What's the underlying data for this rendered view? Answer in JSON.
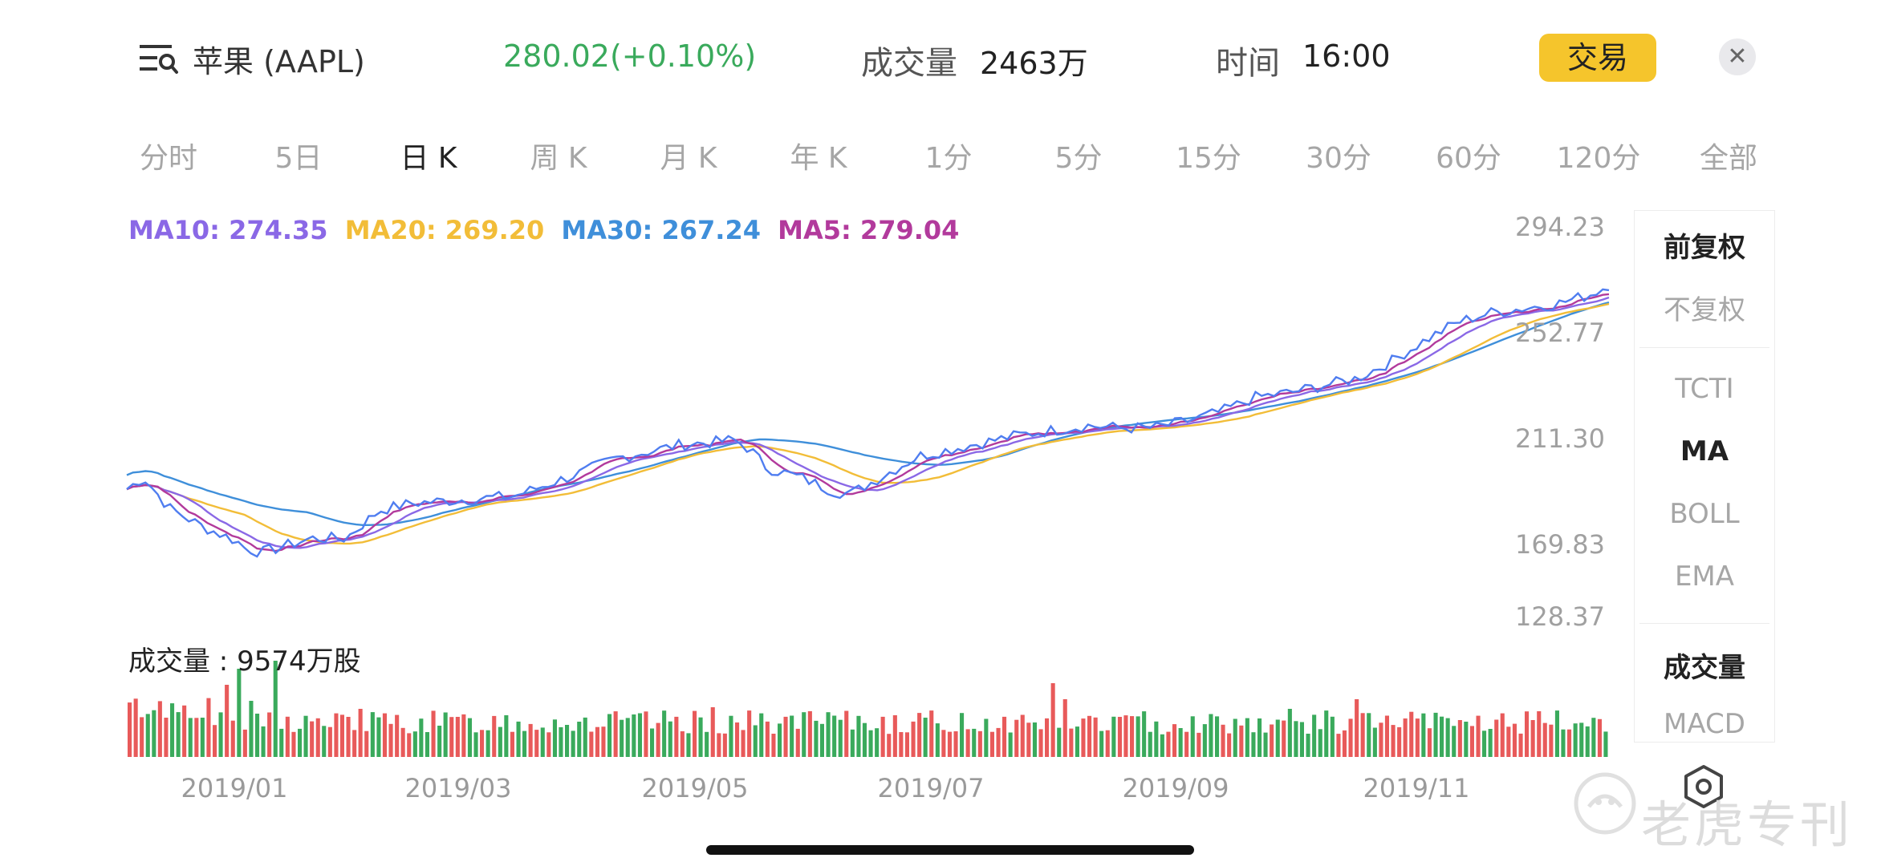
{
  "header": {
    "menu_icon": "search-list-icon",
    "stock_name": "苹果 (AAPL)",
    "price_change": "280.02(+0.10%)",
    "volume_label": "成交量",
    "volume_value": "2463万",
    "time_label": "时间",
    "time_value": "16:00",
    "trade_button": "交易",
    "close_icon": "close-icon",
    "close_glyph": "✕"
  },
  "tabs": [
    {
      "label": "分时",
      "active": false
    },
    {
      "label": "5日",
      "active": false
    },
    {
      "label": "日 K",
      "active": true
    },
    {
      "label": "周 K",
      "active": false
    },
    {
      "label": "月 K",
      "active": false
    },
    {
      "label": "年 K",
      "active": false
    },
    {
      "label": "1分",
      "active": false
    },
    {
      "label": "5分",
      "active": false
    },
    {
      "label": "15分",
      "active": false
    },
    {
      "label": "30分",
      "active": false
    },
    {
      "label": "60分",
      "active": false
    },
    {
      "label": "120分",
      "active": false
    },
    {
      "label": "全部",
      "active": false
    }
  ],
  "legend": {
    "ma10": "MA10: 274.35",
    "ma20": "MA20: 269.20",
    "ma30": "MA30: 267.24",
    "ma5": "MA5: 279.04"
  },
  "colors": {
    "ma10": "#8a68e6",
    "ma20": "#f2bd38",
    "ma30": "#3f8fda",
    "ma5": "#b23a9c",
    "price": "#4f7df0",
    "up": "#e85a5a",
    "down": "#3aaa5c"
  },
  "side_panel": {
    "items": [
      {
        "label": "前复权",
        "active": true
      },
      {
        "label": "不复权",
        "active": false
      },
      {
        "label": "TCTI",
        "active": false
      },
      {
        "label": "MA",
        "active": true
      },
      {
        "label": "BOLL",
        "active": false
      },
      {
        "label": "EMA",
        "active": false
      },
      {
        "label": "成交量",
        "active": true
      },
      {
        "label": "MACD",
        "active": false
      }
    ]
  },
  "volume_caption": "成交量 : 9574万股",
  "settings_icon": "hexagon-settings-icon",
  "watermark": "老虎专刊",
  "chart_data": {
    "type": "line",
    "y_ticks": [
      "294.23",
      "252.77",
      "211.30",
      "169.83",
      "128.37"
    ],
    "ylim": [
      128.37,
      294.23
    ],
    "x_ticks": [
      "2019/01",
      "2019/03",
      "2019/05",
      "2019/07",
      "2019/09",
      "2019/11"
    ],
    "price_anchors": [
      [
        0,
        183
      ],
      [
        2,
        188
      ],
      [
        5,
        175
      ],
      [
        9,
        167
      ],
      [
        13,
        161
      ],
      [
        14,
        158
      ],
      [
        16,
        156
      ],
      [
        18,
        158
      ],
      [
        22,
        162
      ],
      [
        26,
        162
      ],
      [
        30,
        174
      ],
      [
        34,
        177
      ],
      [
        38,
        178
      ],
      [
        42,
        179
      ],
      [
        46,
        180
      ],
      [
        50,
        185
      ],
      [
        54,
        190
      ],
      [
        58,
        196
      ],
      [
        62,
        199
      ],
      [
        66,
        202
      ],
      [
        70,
        203
      ],
      [
        72,
        204
      ],
      [
        74,
        200
      ],
      [
        76,
        192
      ],
      [
        80,
        188
      ],
      [
        84,
        182
      ],
      [
        86,
        181
      ],
      [
        90,
        189
      ],
      [
        94,
        197
      ],
      [
        98,
        200
      ],
      [
        102,
        203
      ],
      [
        106,
        206
      ],
      [
        110,
        208
      ],
      [
        114,
        210
      ],
      [
        118,
        209
      ],
      [
        122,
        209
      ],
      [
        126,
        212
      ],
      [
        130,
        216
      ],
      [
        134,
        222
      ],
      [
        138,
        224
      ],
      [
        142,
        227
      ],
      [
        146,
        230
      ],
      [
        150,
        237
      ],
      [
        154,
        246
      ],
      [
        158,
        254
      ],
      [
        162,
        258
      ],
      [
        166,
        260
      ],
      [
        170,
        262
      ],
      [
        174,
        266
      ],
      [
        176,
        270
      ]
    ]
  }
}
